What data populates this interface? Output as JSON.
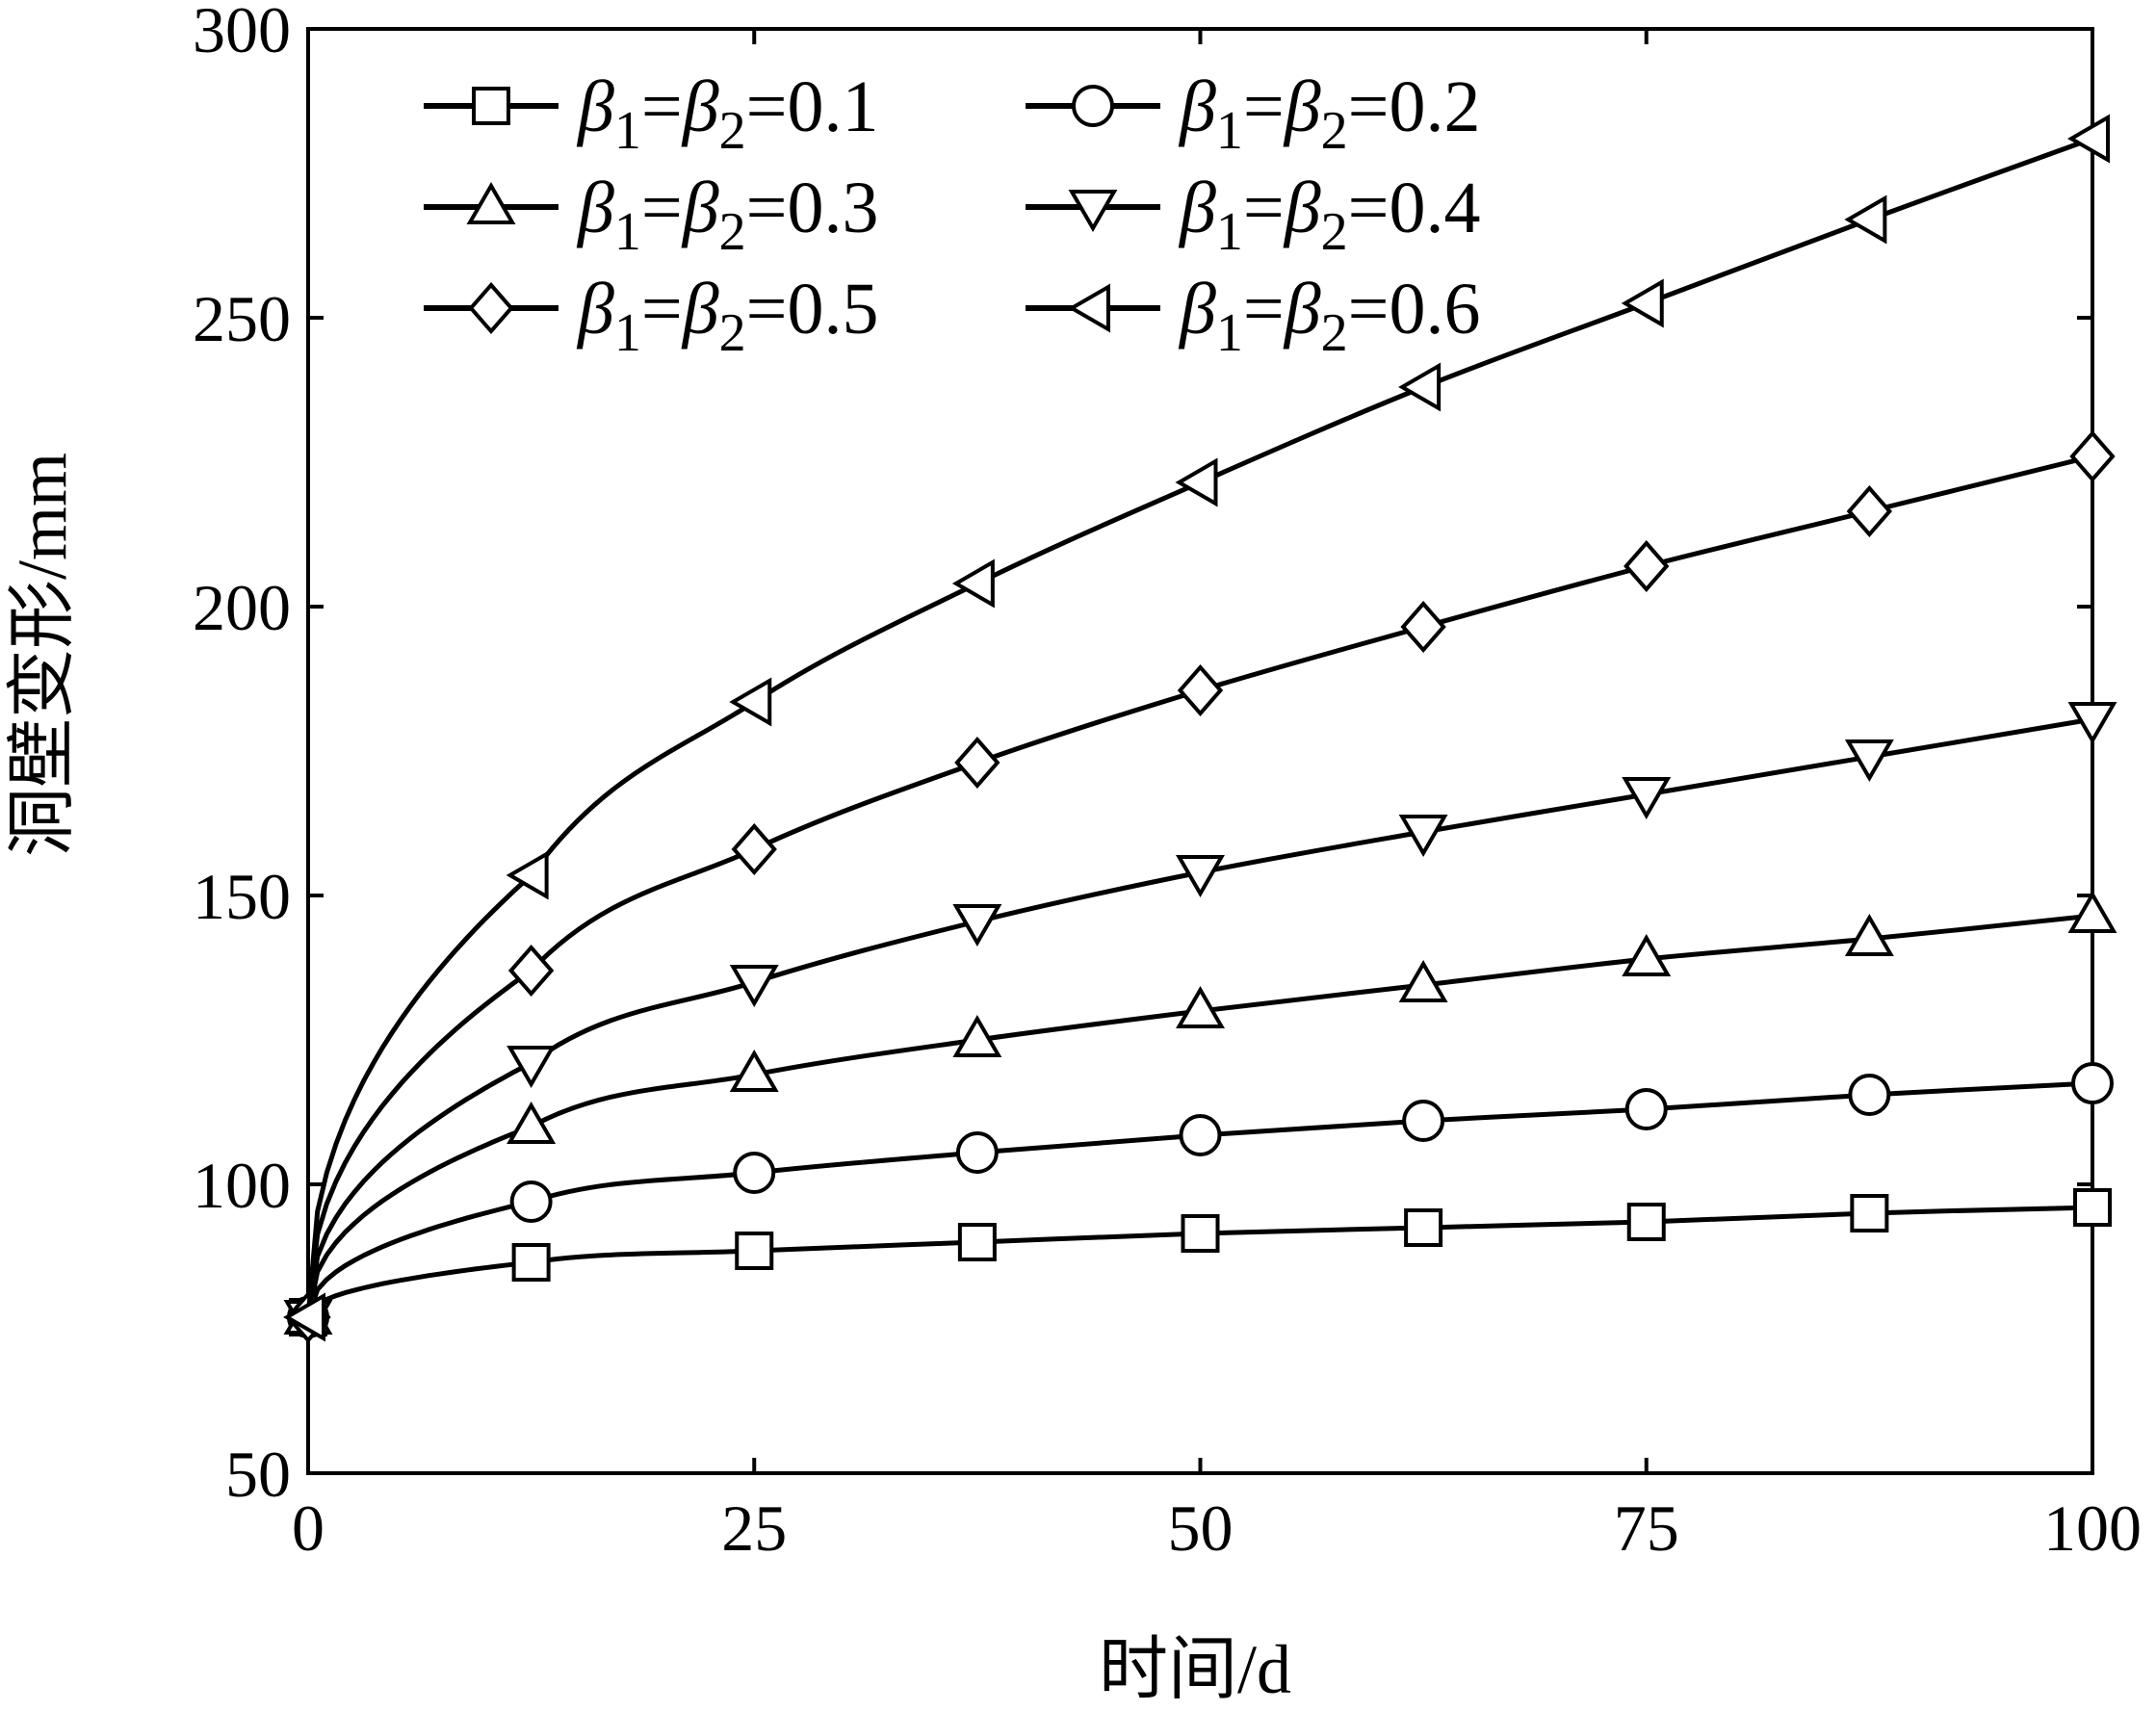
{
  "chart_data": {
    "type": "line",
    "title": "",
    "xlabel": "时间/d",
    "ylabel": "洞壁变形/mm",
    "xlim": [
      0,
      100
    ],
    "ylim": [
      50,
      300
    ],
    "xticks": [
      0,
      25,
      50,
      75,
      100
    ],
    "yticks": [
      50,
      100,
      150,
      200,
      250,
      300
    ],
    "x": [
      0,
      12.5,
      25,
      37.5,
      50,
      62.5,
      75,
      87.5,
      100
    ],
    "legend_position": "top-left",
    "grid": false,
    "series": [
      {
        "name": "β1=β2=0.1",
        "label": {
          "sym": "β",
          "sub1": "1",
          "eq": "=",
          "sub2": "2",
          "val": "=0.1"
        },
        "marker": "square",
        "values": [
          77,
          86.5,
          88.5,
          90,
          91.5,
          92.5,
          93.5,
          95,
          96
        ]
      },
      {
        "name": "β1=β2=0.2",
        "label": {
          "sym": "β",
          "sub1": "1",
          "eq": "=",
          "sub2": "2",
          "val": "=0.2"
        },
        "marker": "circle",
        "values": [
          77,
          97,
          102,
          105.5,
          108.5,
          111,
          113,
          115.5,
          117.5
        ]
      },
      {
        "name": "β1=β2=0.3",
        "label": {
          "sym": "β",
          "sub1": "1",
          "eq": "=",
          "sub2": "2",
          "val": "=0.3"
        },
        "marker": "triangle-up",
        "values": [
          77,
          110,
          119,
          125,
          130,
          134.5,
          139,
          142.5,
          146.5
        ]
      },
      {
        "name": "β1=β2=0.4",
        "label": {
          "sym": "β",
          "sub1": "1",
          "eq": "=",
          "sub2": "2",
          "val": "=0.4"
        },
        "marker": "triangle-down",
        "values": [
          77,
          121,
          135,
          145.5,
          154,
          161,
          167.5,
          174,
          180.5
        ]
      },
      {
        "name": "β1=β2=0.5",
        "label": {
          "sym": "β",
          "sub1": "1",
          "eq": "=",
          "sub2": "2",
          "val": "=0.5"
        },
        "marker": "diamond",
        "values": [
          77,
          137,
          158,
          173,
          185.5,
          196.5,
          207,
          216.5,
          226
        ]
      },
      {
        "name": "β1=β2=0.6",
        "label": {
          "sym": "β",
          "sub1": "1",
          "eq": "=",
          "sub2": "2",
          "val": "=0.6"
        },
        "marker": "triangle-left",
        "values": [
          77,
          153.5,
          183.5,
          204,
          221.5,
          238,
          252.5,
          267,
          281
        ]
      }
    ]
  }
}
